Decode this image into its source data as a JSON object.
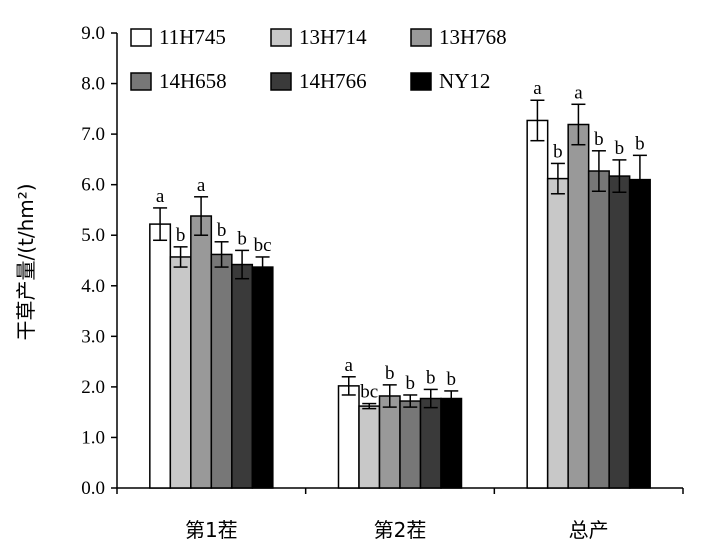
{
  "chart_data": {
    "type": "bar",
    "ylabel": "干草产量/(t/hm²)",
    "xlabel": "",
    "ylim": [
      0,
      9
    ],
    "yticks": [
      "0.0",
      "1.0",
      "2.0",
      "3.0",
      "4.0",
      "5.0",
      "6.0",
      "7.0",
      "8.0",
      "9.0"
    ],
    "categories": [
      "第1茬",
      "第2茬",
      "总产"
    ],
    "legend_position": "top-left",
    "grid": false,
    "series": [
      {
        "name": "11H745",
        "color": "#ffffff",
        "values": [
          5.22,
          2.02,
          7.27
        ],
        "errors": [
          0.32,
          0.18,
          0.4
        ],
        "sig": [
          "a",
          "a",
          "a"
        ]
      },
      {
        "name": "13H714",
        "color": "#c8c8c8",
        "values": [
          4.57,
          1.62,
          6.12
        ],
        "errors": [
          0.2,
          0.05,
          0.3
        ],
        "sig": [
          "b",
          "bc",
          "b"
        ]
      },
      {
        "name": "13H768",
        "color": "#999999",
        "values": [
          5.38,
          1.82,
          7.19
        ],
        "errors": [
          0.38,
          0.22,
          0.4
        ],
        "sig": [
          "a",
          "b",
          "a"
        ]
      },
      {
        "name": "14H658",
        "color": "#777777",
        "values": [
          4.62,
          1.72,
          6.27
        ],
        "errors": [
          0.25,
          0.12,
          0.4
        ],
        "sig": [
          "b",
          "b",
          "b"
        ]
      },
      {
        "name": "14H766",
        "color": "#3a3a3a",
        "values": [
          4.42,
          1.77,
          6.17
        ],
        "errors": [
          0.28,
          0.18,
          0.32
        ],
        "sig": [
          "b",
          "b",
          "b"
        ]
      },
      {
        "name": "NY12",
        "color": "#000000",
        "values": [
          4.37,
          1.77,
          6.1
        ],
        "errors": [
          0.2,
          0.15,
          0.48
        ],
        "sig": [
          "bc",
          "b",
          "b"
        ]
      }
    ]
  }
}
